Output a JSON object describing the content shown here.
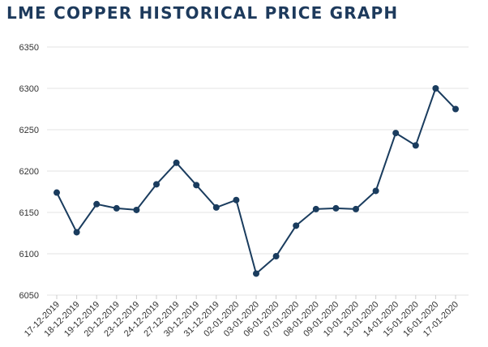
{
  "chart_data": {
    "type": "line",
    "title": "LME COPPER HISTORICAL PRICE GRAPH",
    "xlabel": "",
    "ylabel": "",
    "ylim": [
      6050,
      6350
    ],
    "yticks": [
      6050,
      6100,
      6150,
      6200,
      6250,
      6300,
      6350
    ],
    "grid": true,
    "categories": [
      "17-12-2019",
      "18-12-2019",
      "19-12-2019",
      "20-12-2019",
      "23-12-2019",
      "24-12-2019",
      "27-12-2019",
      "30-12-2019",
      "31-12-2019",
      "02-01-2020",
      "03-01-2020",
      "06-01-2020",
      "07-01-2020",
      "08-01-2020",
      "09-01-2020",
      "10-01-2020",
      "13-01-2020",
      "14-01-2020",
      "15-01-2020",
      "16-01-2020",
      "17-01-2020"
    ],
    "series": [
      {
        "values": [
          6174,
          6126,
          6160,
          6155,
          6153,
          6184,
          6210,
          6183,
          6156,
          6165,
          6076,
          6097,
          6134,
          6154,
          6155,
          6154,
          6176,
          6246,
          6231,
          6300,
          6275
        ]
      }
    ],
    "colors": {
      "line": "#1a3c5e",
      "title": "#1d3a5c",
      "grid": "#e3e3e3"
    }
  }
}
